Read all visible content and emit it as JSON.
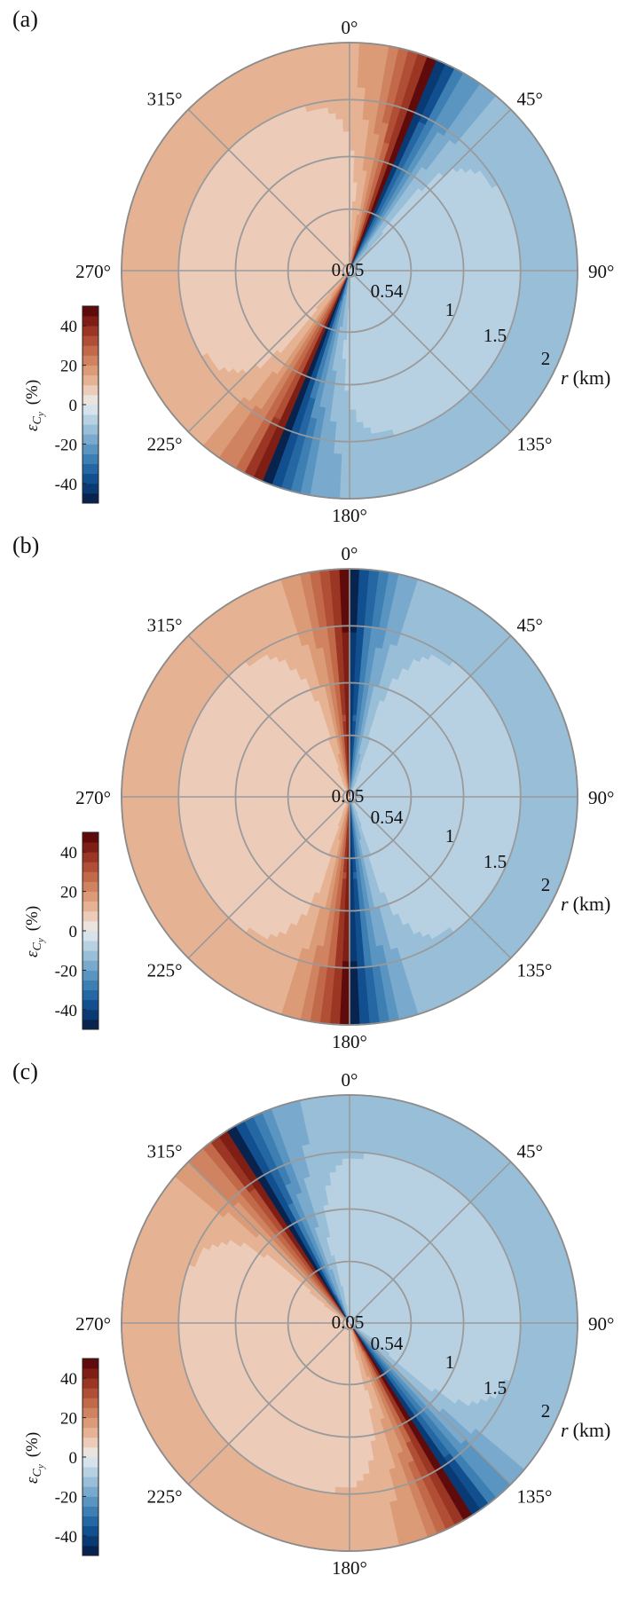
{
  "figure": {
    "colorbar": {
      "label": "ε",
      "label_sub": "C",
      "label_subsub": "y",
      "label_unit": "(%)",
      "ticks": [
        "40",
        "20",
        "0",
        "-20",
        "-40"
      ],
      "tick_values": [
        40,
        20,
        0,
        -20,
        -40
      ],
      "range": [
        -50,
        50
      ],
      "colors": [
        "#08234e",
        "#0a3a73",
        "#124f8f",
        "#2467a3",
        "#3d7fb3",
        "#5a95c1",
        "#79aacd",
        "#98bed8",
        "#b7d1e2",
        "#d6e3ec",
        "#ebe3dd",
        "#eccbb9",
        "#e5b394",
        "#dc9b77",
        "#d08360",
        "#c2694a",
        "#b04f35",
        "#9a3623",
        "#7f1e14",
        "#600b0b"
      ]
    },
    "ring_labels": [
      "0.05",
      "0.54",
      "1",
      "1.5",
      "2"
    ],
    "r_axis_label": "r",
    "r_axis_unit": "(km)",
    "angle_labels": [
      "0°",
      "45°",
      "90°",
      "135°",
      "180°",
      "225°",
      "270°",
      "315°"
    ],
    "panels": [
      {
        "label": "(a)"
      },
      {
        "label": "(b)"
      },
      {
        "label": "(c)"
      }
    ]
  },
  "chart_data": [
    {
      "type": "heatmap",
      "projection": "polar",
      "panel": "(a)",
      "r_ticks": [
        0.05,
        0.54,
        1,
        1.5,
        2
      ],
      "r_max_km": 2.0,
      "theta_ticks_deg": [
        0,
        45,
        90,
        135,
        180,
        225,
        270,
        315
      ],
      "theta_zero": "top",
      "theta_direction": "clockwise",
      "zero_line_deg": 22,
      "peak_magnitude_percent": 50,
      "positive_side": "counter-clockwise of zero line (left/west)",
      "colorbar_range": [
        -50,
        50
      ]
    },
    {
      "type": "heatmap",
      "projection": "polar",
      "panel": "(b)",
      "r_ticks": [
        0.05,
        0.54,
        1,
        1.5,
        2
      ],
      "r_max_km": 2.0,
      "theta_ticks_deg": [
        0,
        45,
        90,
        135,
        180,
        225,
        270,
        315
      ],
      "theta_zero": "top",
      "theta_direction": "clockwise",
      "zero_line_deg": 0,
      "peak_magnitude_percent": 50,
      "positive_side": "counter-clockwise of zero line (left/west)",
      "colorbar_range": [
        -50,
        50
      ]
    },
    {
      "type": "heatmap",
      "projection": "polar",
      "panel": "(c)",
      "r_ticks": [
        0.05,
        0.54,
        1,
        1.5,
        2
      ],
      "r_max_km": 2.0,
      "theta_ticks_deg": [
        0,
        45,
        90,
        135,
        180,
        225,
        270,
        315
      ],
      "theta_zero": "top",
      "theta_direction": "clockwise",
      "zero_line_deg": -32,
      "peak_magnitude_percent": 50,
      "positive_side": "counter-clockwise of zero line (left/west)",
      "colorbar_range": [
        -50,
        50
      ]
    }
  ]
}
